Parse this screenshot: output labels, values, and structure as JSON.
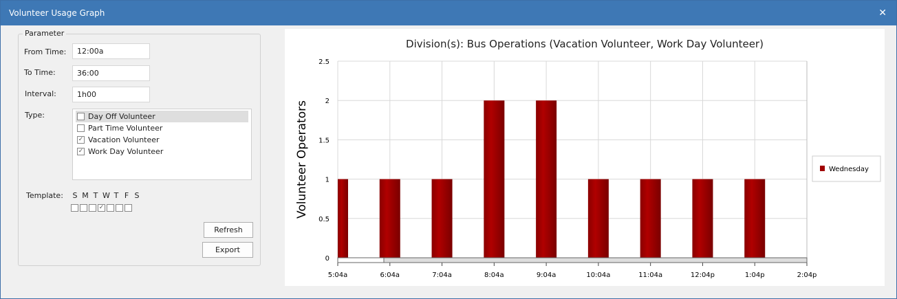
{
  "window": {
    "title": "Volunteer Usage Graph",
    "close": "✕"
  },
  "params": {
    "group": "Parameter",
    "from_label": "From Time:",
    "from": "12:00a",
    "to_label": "To Time:",
    "to": "36:00",
    "interval_label": "Interval:",
    "interval": "1h00",
    "type_label": "Type:",
    "types": [
      {
        "label": "Day Off Volunteer",
        "checked": false
      },
      {
        "label": "Part Time Volunteer",
        "checked": false
      },
      {
        "label": "Vacation Volunteer",
        "checked": true
      },
      {
        "label": "Work Day Volunteer",
        "checked": true
      }
    ],
    "template_label": "Template:",
    "days": [
      {
        "d": "S",
        "checked": false
      },
      {
        "d": "M",
        "checked": false
      },
      {
        "d": "T",
        "checked": false
      },
      {
        "d": "W",
        "checked": true
      },
      {
        "d": "T",
        "checked": false
      },
      {
        "d": "F",
        "checked": false
      },
      {
        "d": "S",
        "checked": false
      }
    ],
    "refresh": "Refresh",
    "export": "Export"
  },
  "chart_data": {
    "type": "bar",
    "title": "Division(s): Bus Operations (Vacation Volunteer, Work Day Volunteer)",
    "ylabel": "Volunteer Operators",
    "xlabel": "",
    "ylim": [
      0,
      2.5
    ],
    "yticks": [
      "0",
      "0.5",
      "1",
      "1.5",
      "2",
      "2.5"
    ],
    "categories": [
      "5:04a",
      "6:04a",
      "7:04a",
      "8:04a",
      "9:04a",
      "10:04a",
      "11:04a",
      "12:04p",
      "1:04p",
      "2:04p"
    ],
    "series": [
      {
        "name": "Wednesday",
        "values": [
          1,
          1,
          1,
          2,
          2,
          1,
          1,
          1,
          1,
          null
        ],
        "color": "#a00000"
      }
    ],
    "grid": true,
    "legend": "right"
  }
}
